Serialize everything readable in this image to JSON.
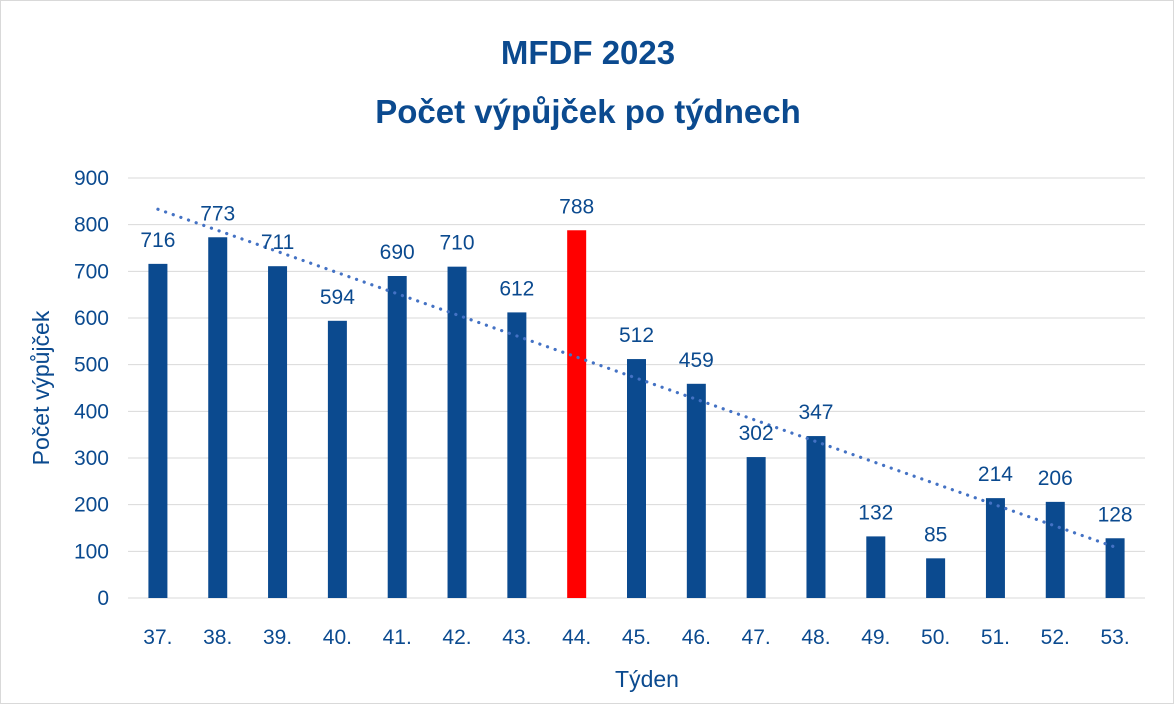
{
  "chart_data": {
    "type": "bar",
    "title_lines": [
      "MFDF 2023",
      "Počet výpůjček po týdnech"
    ],
    "xlabel": "Týden",
    "ylabel": "Počet výpůjček",
    "categories": [
      "37.",
      "38.",
      "39.",
      "40.",
      "41.",
      "42.",
      "43.",
      "44.",
      "45.",
      "46.",
      "47.",
      "48.",
      "49.",
      "50.",
      "51.",
      "52.",
      "53."
    ],
    "values": [
      716,
      773,
      711,
      594,
      690,
      710,
      612,
      788,
      512,
      459,
      302,
      347,
      132,
      85,
      214,
      206,
      128
    ],
    "ylim": [
      0,
      900
    ],
    "yticks": [
      0,
      100,
      200,
      300,
      400,
      500,
      600,
      700,
      800,
      900
    ],
    "grid": true,
    "legend": "none",
    "highlight_category": "44.",
    "trendline": {
      "type": "linear",
      "start": 833,
      "end": 109
    },
    "colors": {
      "bar": "#0b4a8f",
      "highlight": "#ff0000",
      "text": "#0b4a8f",
      "trendline": "#4472c4",
      "grid": "#d9d9d9"
    }
  }
}
